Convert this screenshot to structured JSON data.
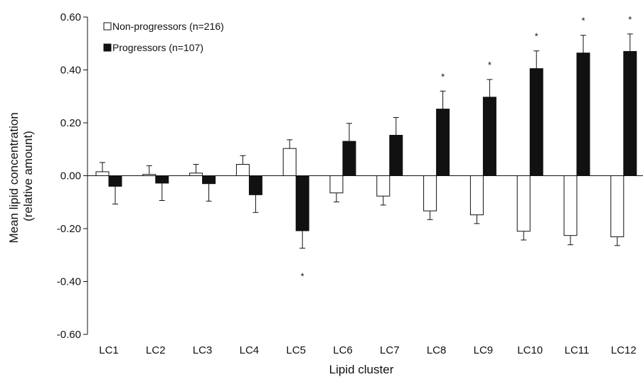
{
  "chart_data": {
    "type": "bar",
    "title": "",
    "xlabel": "Lipid cluster",
    "ylabel_line1": "Mean lipid concentration",
    "ylabel_line2": "(relative amount)",
    "ylim": [
      -0.6,
      0.6
    ],
    "yticks": [
      0.6,
      0.4,
      0.2,
      0.0,
      -0.2,
      -0.4,
      -0.6
    ],
    "ytick_labels": [
      "0.60",
      "0.40",
      "0.20",
      "0.00",
      "-0.20",
      "-0.40",
      "-0.60"
    ],
    "categories": [
      "LC1",
      "LC2",
      "LC3",
      "LC4",
      "LC5",
      "LC6",
      "LC7",
      "LC8",
      "LC9",
      "LC10",
      "LC11",
      "LC12"
    ],
    "legend_position": "top-left",
    "grid": false,
    "series": [
      {
        "name": "Non-progressors (n=216)",
        "fill": "#ffffff",
        "values": [
          0.015,
          0.005,
          0.01,
          0.043,
          0.103,
          -0.065,
          -0.077,
          -0.133,
          -0.148,
          -0.21,
          -0.226,
          -0.231
        ],
        "errors": [
          0.035,
          0.033,
          0.033,
          0.033,
          0.033,
          0.034,
          0.034,
          0.033,
          0.033,
          0.033,
          0.035,
          0.033
        ]
      },
      {
        "name": "Progressors (n=107)",
        "fill": "#111111",
        "values": [
          -0.04,
          -0.028,
          -0.03,
          -0.072,
          -0.208,
          0.13,
          0.153,
          0.252,
          0.297,
          0.405,
          0.464,
          0.47
        ],
        "errors": [
          0.067,
          0.066,
          0.066,
          0.067,
          0.066,
          0.068,
          0.067,
          0.068,
          0.067,
          0.067,
          0.067,
          0.066
        ]
      }
    ],
    "significance_marker": "*",
    "significant_categories": [
      "LC5",
      "LC8",
      "LC9",
      "LC10",
      "LC11",
      "LC12"
    ]
  }
}
